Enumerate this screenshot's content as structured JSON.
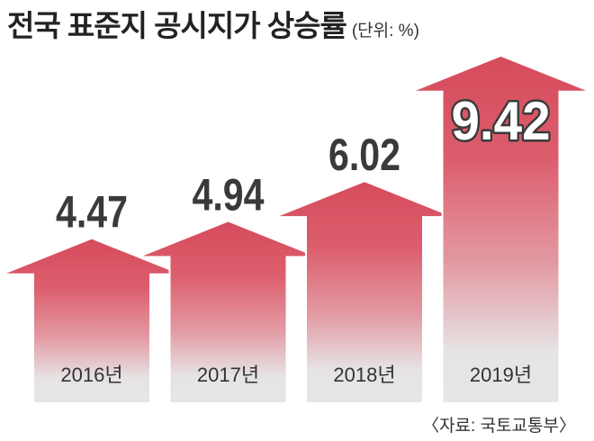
{
  "source": "〈자료: 국토교통부〉",
  "colors": {
    "arrow_gradient": [
      "#d64b5b",
      "#dc5e6d",
      "#e39aa3",
      "#e6e3e4",
      "#e6e6e8"
    ],
    "arrow_outline": "#ffffff",
    "label": "#3a3a3a",
    "highlight_label": "#ffffff"
  },
  "chart_data": {
    "type": "bar",
    "title": "전국 표준지 공시지가 상승률",
    "unit": "(단위: %)",
    "categories": [
      "2016년",
      "2017년",
      "2018년",
      "2019년"
    ],
    "values": [
      4.47,
      4.94,
      6.02,
      9.42
    ],
    "grid": false
  }
}
